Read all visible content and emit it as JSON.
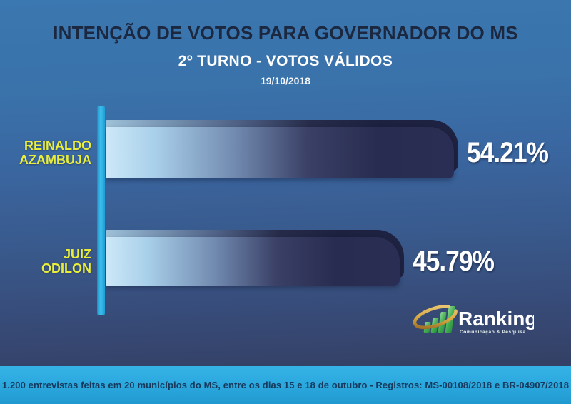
{
  "chart_data": {
    "type": "bar",
    "orientation": "horizontal",
    "title": "INTENÇÃO DE VOTOS PARA GOVERNADOR DO MS",
    "subtitle": "2º TURNO - VOTOS VÁLIDOS",
    "date": "19/10/2018",
    "categories": [
      "REINALDO AZAMBUJA",
      "JUIZ ODILON"
    ],
    "values": [
      54.21,
      45.79
    ],
    "value_unit": "%",
    "xlim": [
      0,
      60
    ],
    "grid": false,
    "legend": false,
    "bars": [
      {
        "label_lines": [
          "REINALDO",
          "AZAMBUJA"
        ],
        "value": 54.21,
        "value_label": "54.21%"
      },
      {
        "label_lines": [
          "JUIZ",
          "ODILON"
        ],
        "value": 45.79,
        "value_label": "45.79%"
      }
    ]
  },
  "logo": {
    "brand": "Ranking",
    "tagline": "Comunicação & Pesquisa",
    "icon": "bar-chart-swoosh-icon"
  },
  "footer": {
    "text": "1.200 entrevistas feitas em 20 municípios do MS, entre os dias 15 e 18 de outubro - Registros: MS-00108/2018 e BR-04907/2018"
  },
  "colors": {
    "background_top": "#3b77b0",
    "background_bottom": "#323a58",
    "title_text": "#1b2840",
    "subtitle_text": "#ffffff",
    "label_yellow": "#e9ee3d",
    "bar_gradient_light": "#cde8f8",
    "bar_gradient_dark": "#282c50",
    "axis_cyan": "#29abe2",
    "value_text": "#ffffff",
    "footer_bg": "#2aa7dd",
    "footer_text": "#16395c",
    "logo_green": "#3faa4c",
    "logo_gold": "#d9a843"
  }
}
